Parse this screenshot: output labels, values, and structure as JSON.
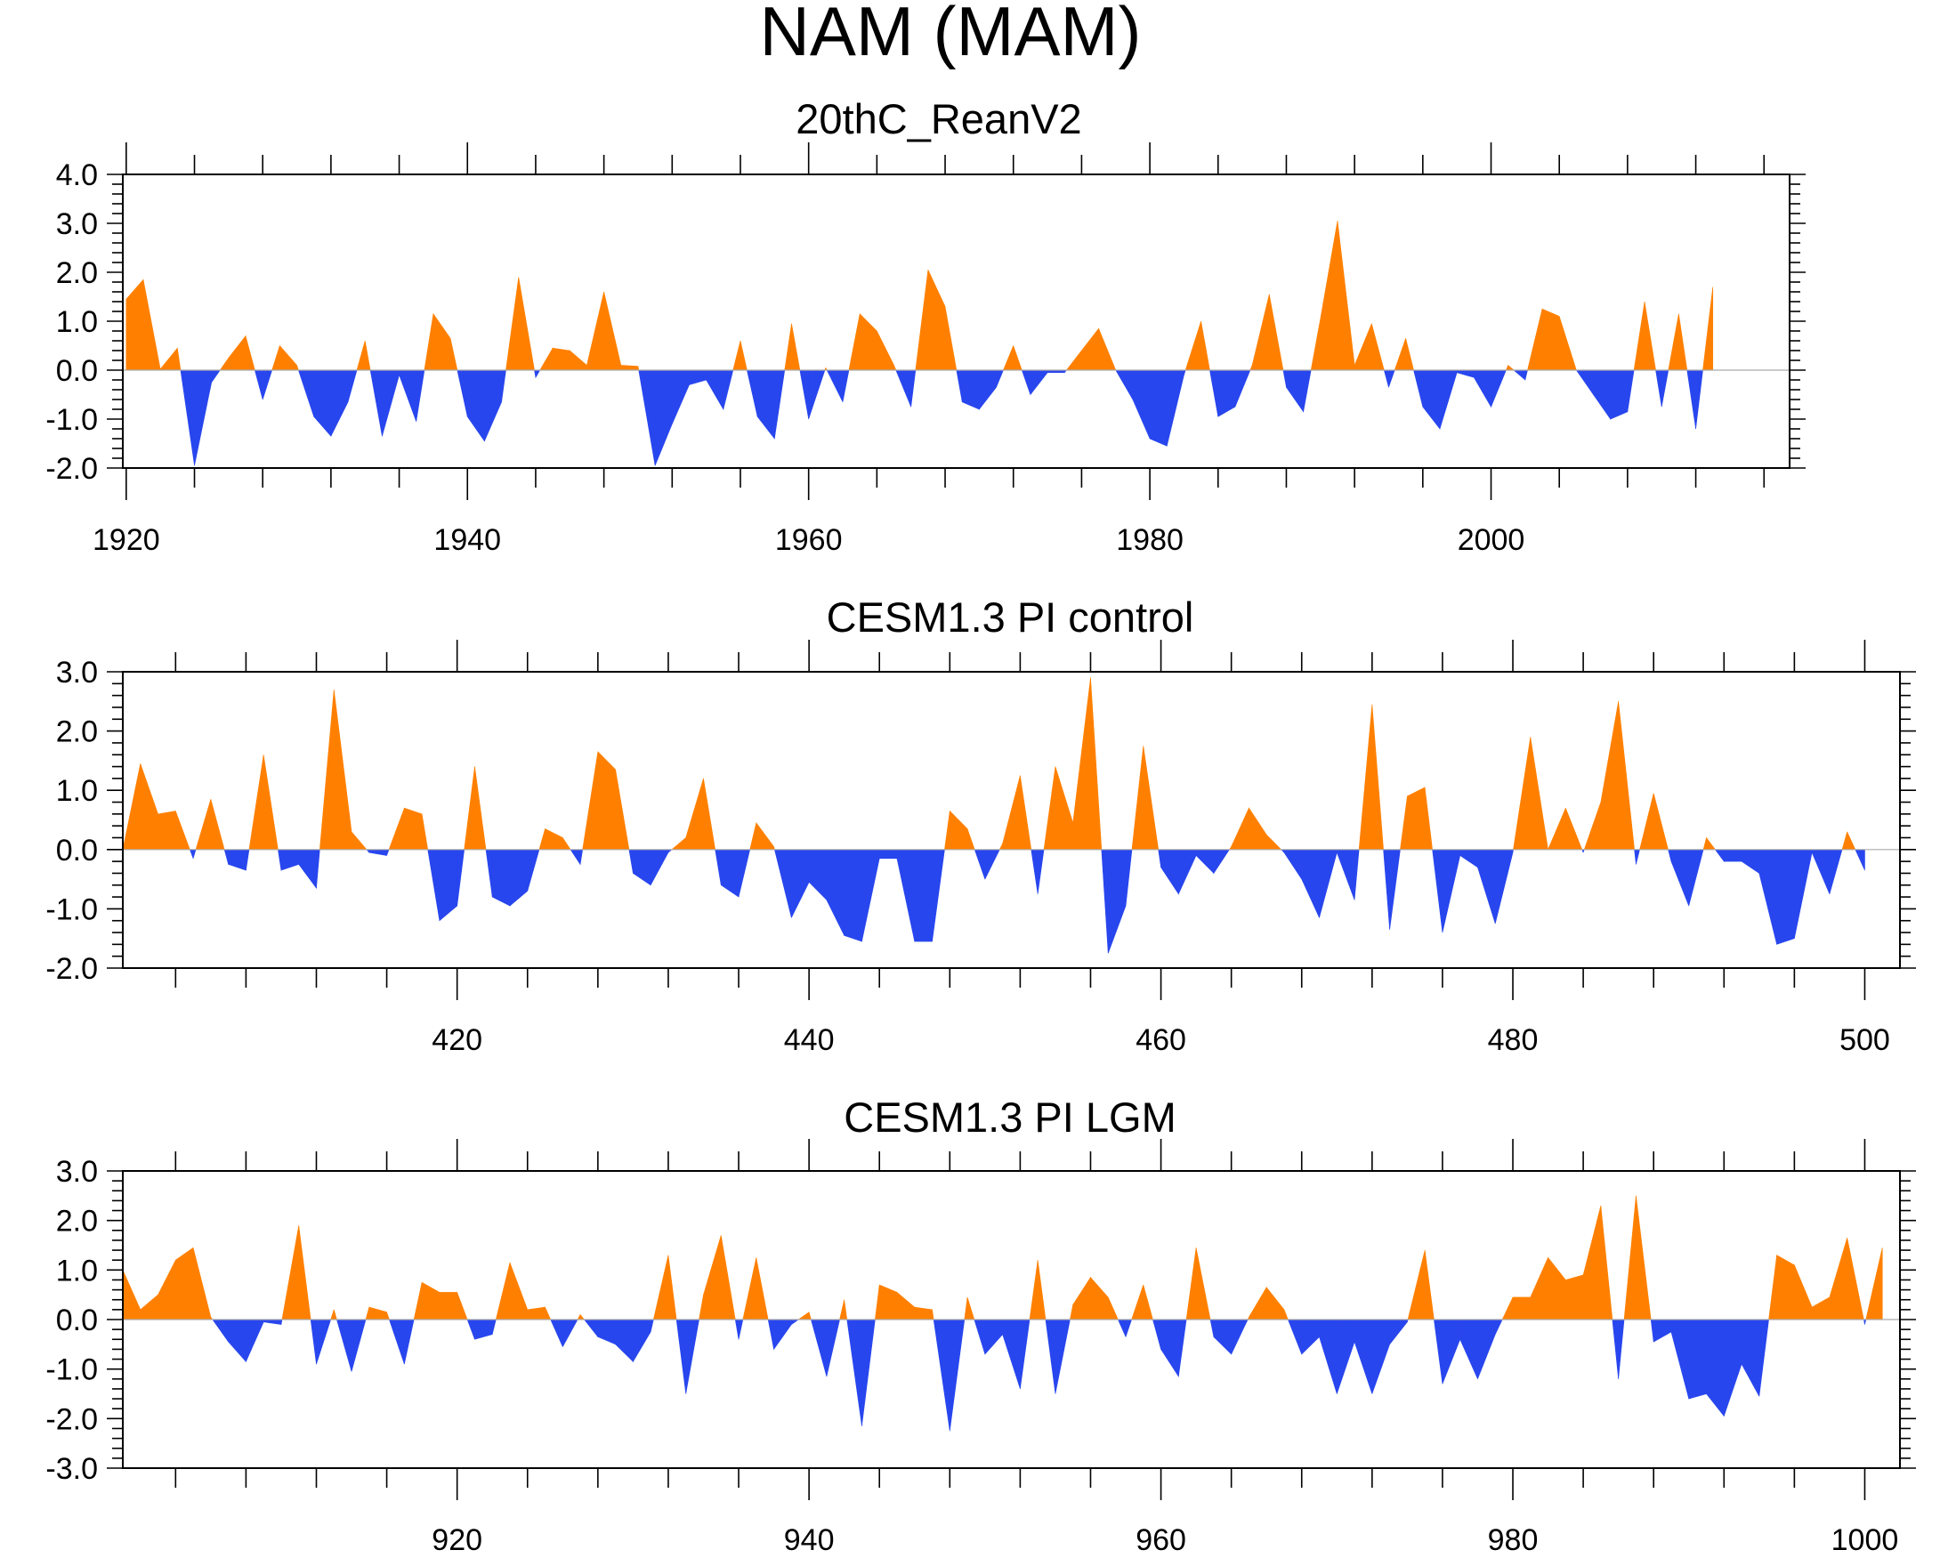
{
  "title": "NAM (MAM)",
  "colors": {
    "positive": "#ff8000",
    "negative": "#2846ee",
    "axis": "#000000",
    "zero_line": "#aaaaaa"
  },
  "chart_data": [
    {
      "type": "area",
      "title": "20thC_ReanV2",
      "xlabel": "",
      "ylabel": "",
      "xlim": [
        1919.8,
        2017.5
      ],
      "ylim": [
        -2.0,
        4.0
      ],
      "yticks": [
        "-2.0",
        "-1.0",
        "0.0",
        "1.0",
        "2.0",
        "3.0",
        "4.0"
      ],
      "xticks": [
        1920,
        1940,
        1960,
        1980,
        2000
      ],
      "xtick_labels": [
        "1920",
        "1940",
        "1960",
        "1980",
        "2000"
      ],
      "x_start": 1920,
      "values": [
        1.45,
        1.85,
        0.02,
        0.45,
        -1.95,
        -0.25,
        0.25,
        0.7,
        -0.6,
        0.5,
        0.1,
        -0.95,
        -1.35,
        -0.65,
        0.6,
        -1.35,
        -0.1,
        -1.05,
        1.15,
        0.65,
        -0.95,
        -1.45,
        -0.65,
        1.9,
        -0.15,
        0.45,
        0.4,
        0.1,
        1.6,
        0.1,
        0.08,
        -1.95,
        -1.1,
        -0.3,
        -0.2,
        -0.8,
        0.6,
        -0.95,
        -1.4,
        0.95,
        -1.0,
        0.05,
        -0.65,
        1.15,
        0.8,
        0.1,
        -0.75,
        2.05,
        1.3,
        -0.65,
        -0.8,
        -0.35,
        0.5,
        -0.5,
        -0.05,
        -0.05,
        0.4,
        0.85,
        0.0,
        -0.6,
        -1.4,
        -1.55,
        -0.1,
        1.0,
        -0.95,
        -0.75,
        0.1,
        1.55,
        -0.35,
        -0.85,
        1.05,
        3.05,
        0.1,
        0.95,
        -0.35,
        0.65,
        -0.75,
        -1.2,
        -0.05,
        -0.15,
        -0.75,
        0.1,
        -0.2,
        1.25,
        1.1,
        0.0,
        -0.5,
        -1.0,
        -0.85,
        1.4,
        -0.75,
        1.15,
        -1.2,
        1.7
      ]
    },
    {
      "type": "area",
      "title": "CESM1.3 PI control",
      "xlabel": "",
      "ylabel": "",
      "xlim": [
        401,
        502
      ],
      "ylim": [
        -2.0,
        3.0
      ],
      "yticks": [
        "-2.0",
        "-1.0",
        "0.0",
        "1.0",
        "2.0",
        "3.0"
      ],
      "xticks": [
        420,
        440,
        460,
        480,
        500
      ],
      "xtick_labels": [
        "420",
        "440",
        "460",
        "480",
        "500"
      ],
      "x_start": 401,
      "values": [
        0.0,
        1.45,
        0.6,
        0.65,
        -0.15,
        0.85,
        -0.25,
        -0.35,
        1.6,
        -0.35,
        -0.25,
        -0.65,
        2.7,
        0.3,
        -0.05,
        -0.1,
        0.7,
        0.6,
        -1.2,
        -0.95,
        1.4,
        -0.8,
        -0.95,
        -0.7,
        0.35,
        0.2,
        -0.25,
        1.65,
        1.35,
        -0.4,
        -0.6,
        -0.05,
        0.2,
        1.2,
        -0.6,
        -0.8,
        0.45,
        0.05,
        -1.15,
        -0.55,
        -0.85,
        -1.45,
        -1.55,
        -0.15,
        -0.15,
        -1.55,
        -1.55,
        0.65,
        0.35,
        -0.5,
        0.1,
        1.25,
        -0.75,
        1.4,
        0.45,
        2.9,
        -1.75,
        -0.95,
        1.75,
        -0.3,
        -0.75,
        -0.1,
        -0.4,
        0.05,
        0.7,
        0.25,
        -0.05,
        -0.5,
        -1.15,
        -0.05,
        -0.85,
        2.45,
        -1.35,
        0.9,
        1.05,
        -1.4,
        -0.1,
        -0.3,
        -1.25,
        -0.05,
        1.9,
        0.0,
        0.7,
        -0.05,
        0.8,
        2.5,
        -0.25,
        0.95,
        -0.2,
        -0.95,
        0.2,
        -0.2,
        -0.2,
        -0.4,
        -1.6,
        -1.5,
        -0.05,
        -0.75,
        0.3,
        -0.35
      ]
    },
    {
      "type": "area",
      "title": "CESM1.3 PI LGM",
      "xlabel": "",
      "ylabel": "",
      "xlim": [
        901,
        1002
      ],
      "ylim": [
        -3.0,
        3.0
      ],
      "yticks": [
        "-3.0",
        "-2.0",
        "-1.0",
        "0.0",
        "1.0",
        "2.0",
        "3.0"
      ],
      "xticks": [
        920,
        940,
        960,
        980,
        1000
      ],
      "xtick_labels": [
        "920",
        "940",
        "960",
        "980",
        "1000"
      ],
      "x_start": 901,
      "values": [
        1.0,
        0.2,
        0.5,
        1.2,
        1.45,
        0.05,
        -0.45,
        -0.85,
        -0.05,
        -0.1,
        1.9,
        -0.9,
        0.2,
        -1.05,
        0.25,
        0.15,
        -0.9,
        0.75,
        0.55,
        0.55,
        -0.4,
        -0.3,
        1.15,
        0.2,
        0.25,
        -0.55,
        0.1,
        -0.35,
        -0.5,
        -0.85,
        -0.25,
        1.3,
        -1.5,
        0.5,
        1.7,
        -0.4,
        1.25,
        -0.6,
        -0.1,
        0.15,
        -1.15,
        0.4,
        -2.15,
        0.7,
        0.55,
        0.25,
        0.2,
        -2.25,
        0.45,
        -0.7,
        -0.3,
        -1.4,
        1.2,
        -1.5,
        0.3,
        0.85,
        0.45,
        -0.35,
        0.7,
        -0.6,
        -1.15,
        1.45,
        -0.35,
        -0.7,
        0.05,
        0.65,
        0.2,
        -0.7,
        -0.35,
        -1.5,
        -0.45,
        -1.5,
        -0.5,
        -0.05,
        1.4,
        -1.3,
        -0.4,
        -1.2,
        -0.3,
        0.45,
        0.45,
        1.25,
        0.8,
        0.9,
        2.3,
        -1.2,
        2.5,
        -0.45,
        -0.25,
        -1.6,
        -1.5,
        -1.95,
        -0.9,
        -1.55,
        1.3,
        1.1,
        0.25,
        0.45,
        1.65,
        -0.1,
        1.45
      ]
    }
  ]
}
